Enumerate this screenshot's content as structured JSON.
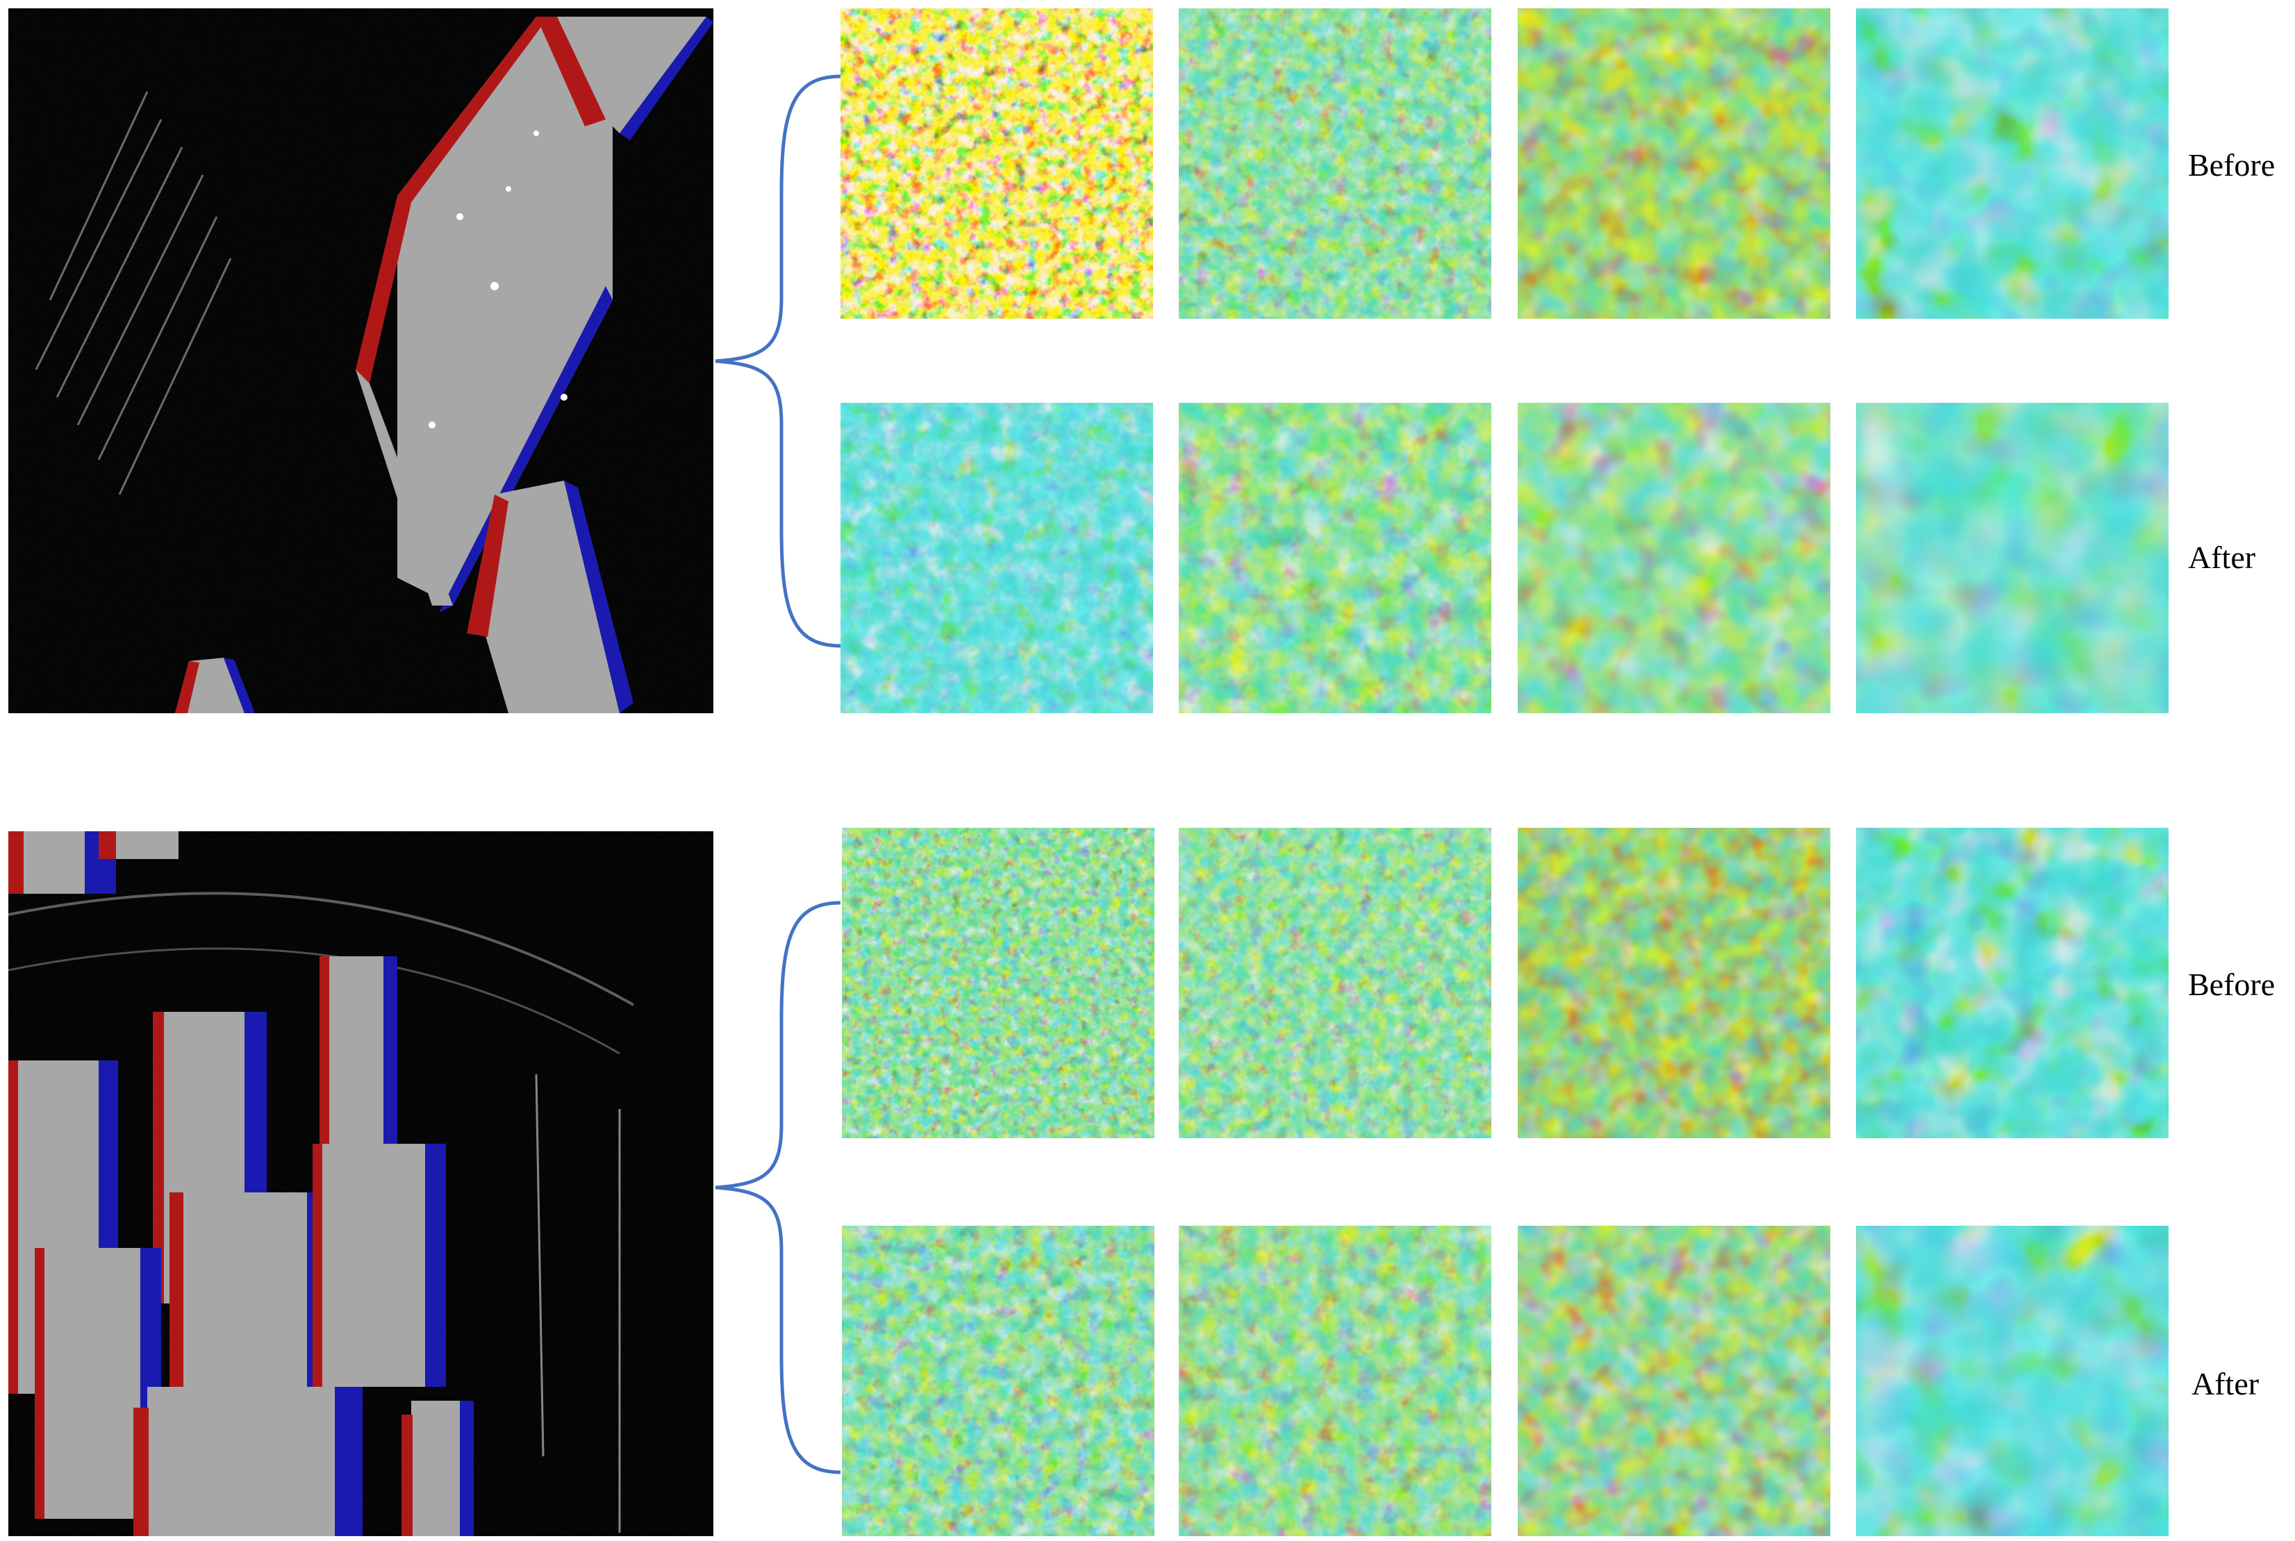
{
  "figure": {
    "groups": [
      {
        "id": "top",
        "rows": [
          {
            "label": "Before",
            "style": "before"
          },
          {
            "label": "After",
            "style": "after"
          }
        ]
      },
      {
        "id": "bottom",
        "rows": [
          {
            "label": "Before",
            "style": "before"
          },
          {
            "label": "After",
            "style": "after"
          }
        ]
      }
    ],
    "colors": {
      "sar_background": "#050505",
      "building_face": "#a7a7a7",
      "building_red_edge": "#b01818",
      "building_blue_edge": "#1a1ab0",
      "brace": "#4472c4",
      "heat_low": "#1e64dc",
      "heat_mid": "#3cd6d0",
      "heat_high": "#f2e81e",
      "heat_peak": "#b80000"
    },
    "colormap": "jet"
  }
}
